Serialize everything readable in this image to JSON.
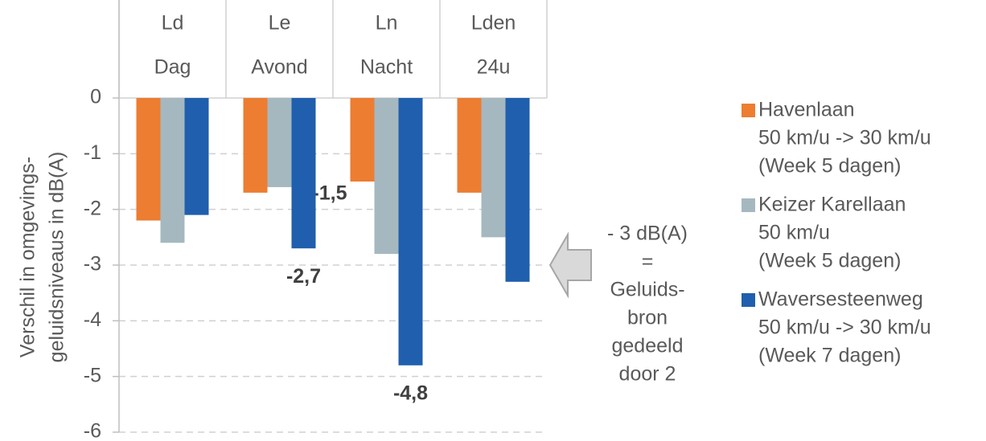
{
  "chart_data": {
    "type": "bar",
    "y_label": [
      "Verschil in omgevings-",
      "geluidsniveaus in dB(A)"
    ],
    "categories": [
      [
        "Ld",
        "Dag"
      ],
      [
        "Le",
        "Avond"
      ],
      [
        "Ln",
        "Nacht"
      ],
      [
        "Lden",
        "24u"
      ]
    ],
    "series": [
      {
        "name": [
          "Havenlaan",
          "50 km/u -> 30 km/u",
          "(Week 5 dagen)"
        ],
        "color": "#ed7d31",
        "values": [
          -2.2,
          -1.7,
          -1.5,
          -1.7
        ],
        "value_labels": [
          null,
          null,
          "-1,5",
          null
        ]
      },
      {
        "name": [
          "Keizer Karellaan",
          "50 km/u",
          "(Week 5 dagen)"
        ],
        "color": "#a5b8c0",
        "values": [
          -2.6,
          -1.6,
          -2.8,
          -2.5
        ],
        "value_labels": [
          null,
          null,
          null,
          null
        ]
      },
      {
        "name": [
          "Waversesteenweg",
          "50 km/u -> 30 km/u",
          "(Week 7 dagen)"
        ],
        "color": "#1f5fad",
        "values": [
          -2.1,
          -2.7,
          -4.8,
          -3.3
        ],
        "value_labels": [
          null,
          "-2,7",
          "-4,8",
          null
        ]
      }
    ],
    "annotation": [
      "- 3 dB(A)",
      "=",
      "Geluids-",
      "bron",
      "gedeeld",
      "door 2"
    ],
    "ylim": [
      -6,
      0
    ],
    "yticks": [
      0,
      -1,
      -2,
      -3,
      -4,
      -5,
      -6
    ],
    "grid": true
  }
}
